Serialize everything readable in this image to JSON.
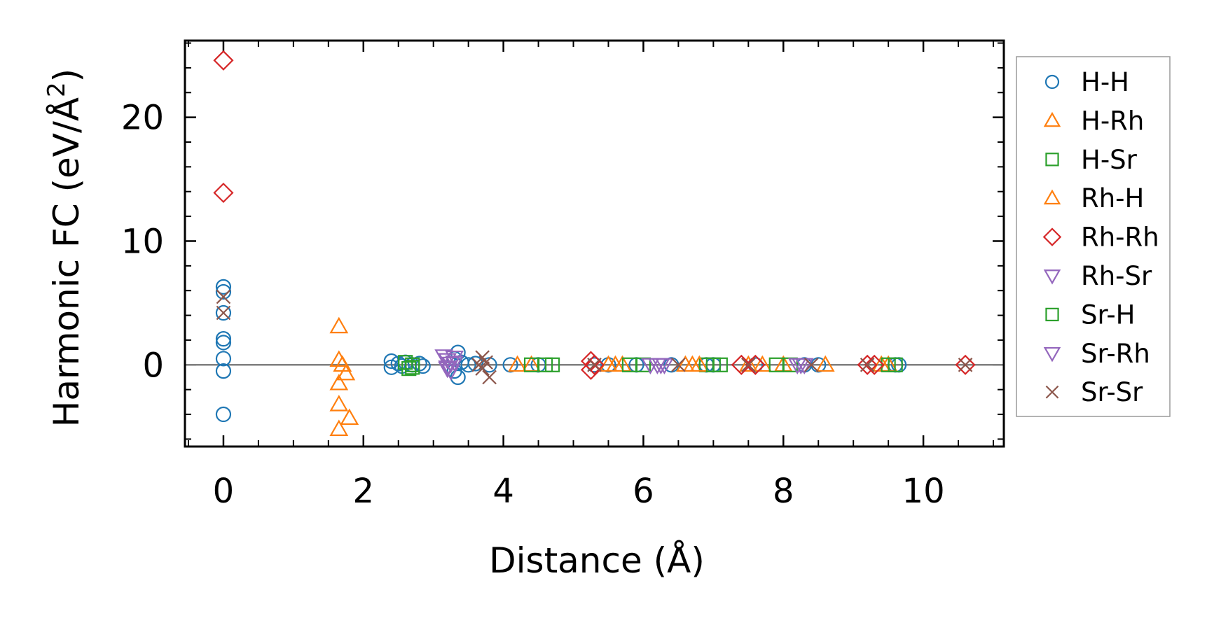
{
  "chart_data": {
    "type": "scatter",
    "xlabel": "Distance (Å)",
    "ylabel_main": "Harmonic FC (eV/Å",
    "ylabel_sup": "2",
    "ylabel_close": ")",
    "xlim": [
      -0.55,
      11.15
    ],
    "ylim": [
      -6.6,
      26.2
    ],
    "xticks": [
      0,
      2,
      4,
      6,
      8,
      10
    ],
    "xtick_labels": [
      "0",
      "2",
      "4",
      "6",
      "8",
      "10"
    ],
    "yticks": [
      0,
      10,
      20
    ],
    "ytick_labels": [
      "0",
      "10",
      "20"
    ],
    "x_minor_step": 0.5,
    "y_minor_step": 2,
    "zero_line": true,
    "legend_position": "outside-right",
    "series": [
      {
        "name": "H-H",
        "marker": "circle",
        "color": "#1f77b4",
        "points": [
          [
            0,
            6.3
          ],
          [
            0,
            5.9
          ],
          [
            0,
            4.2
          ],
          [
            0,
            2.1
          ],
          [
            0,
            1.8
          ],
          [
            0,
            0.5
          ],
          [
            0,
            -0.5
          ],
          [
            0,
            -4.0
          ],
          [
            2.4,
            0.3
          ],
          [
            2.4,
            -0.2
          ],
          [
            2.5,
            0.1
          ],
          [
            2.55,
            -0.1
          ],
          [
            2.6,
            0.2
          ],
          [
            2.7,
            0.0
          ],
          [
            2.8,
            0.1
          ],
          [
            2.85,
            -0.1
          ],
          [
            3.35,
            1.0
          ],
          [
            3.35,
            -1.0
          ],
          [
            3.3,
            0.5
          ],
          [
            3.3,
            -0.5
          ],
          [
            3.4,
            0.2
          ],
          [
            3.5,
            0.0
          ],
          [
            3.6,
            0.1
          ],
          [
            3.8,
            0.0
          ],
          [
            4.1,
            0.0
          ],
          [
            4.5,
            0.0
          ],
          [
            5.3,
            0.0
          ],
          [
            5.5,
            0.0
          ],
          [
            5.9,
            0.0
          ],
          [
            6.4,
            0.0
          ],
          [
            6.9,
            0.0
          ],
          [
            7.0,
            0.0
          ],
          [
            7.6,
            0.0
          ],
          [
            8.3,
            0.0
          ],
          [
            8.5,
            0.0
          ],
          [
            9.6,
            0.0
          ],
          [
            9.65,
            0.0
          ]
        ]
      },
      {
        "name": "H-Rh",
        "marker": "triangle-up",
        "color": "#ff7f0e",
        "points": [
          [
            1.65,
            3.1
          ],
          [
            1.65,
            0.4
          ],
          [
            1.7,
            0.0
          ],
          [
            1.75,
            -0.7
          ],
          [
            1.65,
            -1.5
          ],
          [
            1.65,
            -3.2
          ],
          [
            1.8,
            -4.3
          ],
          [
            1.65,
            -5.2
          ],
          [
            4.2,
            0.0
          ],
          [
            4.4,
            0.0
          ],
          [
            5.6,
            0.0
          ],
          [
            5.7,
            0.0
          ],
          [
            6.6,
            0.0
          ],
          [
            6.7,
            0.0
          ],
          [
            7.5,
            0.0
          ],
          [
            7.7,
            0.0
          ],
          [
            8.0,
            0.0
          ],
          [
            8.6,
            0.0
          ],
          [
            9.4,
            0.0
          ],
          [
            9.5,
            0.0
          ]
        ]
      },
      {
        "name": "H-Sr",
        "marker": "square",
        "color": "#2ca02c",
        "points": [
          [
            2.6,
            0.2
          ],
          [
            2.65,
            -0.3
          ],
          [
            2.7,
            0.0
          ],
          [
            4.4,
            0.0
          ],
          [
            4.6,
            0.0
          ],
          [
            4.7,
            0.0
          ],
          [
            5.8,
            0.0
          ],
          [
            6.0,
            0.0
          ],
          [
            6.9,
            0.0
          ],
          [
            7.1,
            0.0
          ],
          [
            7.9,
            0.0
          ],
          [
            8.1,
            0.0
          ],
          [
            9.5,
            0.0
          ],
          [
            9.6,
            0.0
          ]
        ]
      },
      {
        "name": "Rh-H",
        "marker": "triangle-up",
        "color": "#ff7f0e",
        "points": [
          [
            5.5,
            0.0
          ],
          [
            6.8,
            0.0
          ]
        ]
      },
      {
        "name": "Rh-Rh",
        "marker": "diamond",
        "color": "#d62728",
        "points": [
          [
            0,
            24.6
          ],
          [
            0,
            13.9
          ],
          [
            5.25,
            0.3
          ],
          [
            5.25,
            -0.4
          ],
          [
            5.3,
            0.0
          ],
          [
            7.4,
            0.0
          ],
          [
            7.6,
            0.0
          ],
          [
            9.2,
            0.0
          ],
          [
            9.3,
            0.0
          ],
          [
            10.6,
            0.0
          ]
        ]
      },
      {
        "name": "Rh-Sr",
        "marker": "triangle-down",
        "color": "#9467bd",
        "points": [
          [
            3.15,
            0.7
          ],
          [
            3.2,
            0.4
          ],
          [
            3.25,
            0.1
          ],
          [
            3.2,
            -0.2
          ],
          [
            3.25,
            -0.5
          ],
          [
            3.3,
            0.6
          ],
          [
            3.3,
            0.2
          ],
          [
            6.1,
            0.0
          ],
          [
            6.2,
            0.0
          ],
          [
            6.3,
            0.0
          ],
          [
            8.2,
            0.0
          ],
          [
            8.3,
            0.0
          ]
        ]
      },
      {
        "name": "Sr-H",
        "marker": "square",
        "color": "#2ca02c",
        "points": [
          [
            2.7,
            -0.2
          ],
          [
            7.0,
            0.0
          ]
        ]
      },
      {
        "name": "Sr-Rh",
        "marker": "triangle-down",
        "color": "#9467bd",
        "points": [
          [
            3.2,
            -0.3
          ],
          [
            6.25,
            0.0
          ],
          [
            8.25,
            0.0
          ]
        ]
      },
      {
        "name": "Sr-Sr",
        "marker": "x",
        "color": "#8c564b",
        "points": [
          [
            0,
            5.5
          ],
          [
            0,
            4.2
          ],
          [
            3.7,
            0.6
          ],
          [
            3.7,
            -0.3
          ],
          [
            3.75,
            0.2
          ],
          [
            3.8,
            -1.0
          ],
          [
            3.65,
            0.0
          ],
          [
            5.3,
            0.0
          ],
          [
            6.5,
            0.0
          ],
          [
            7.5,
            0.0
          ],
          [
            8.4,
            0.0
          ],
          [
            9.2,
            0.0
          ],
          [
            10.6,
            0.0
          ]
        ]
      }
    ]
  }
}
